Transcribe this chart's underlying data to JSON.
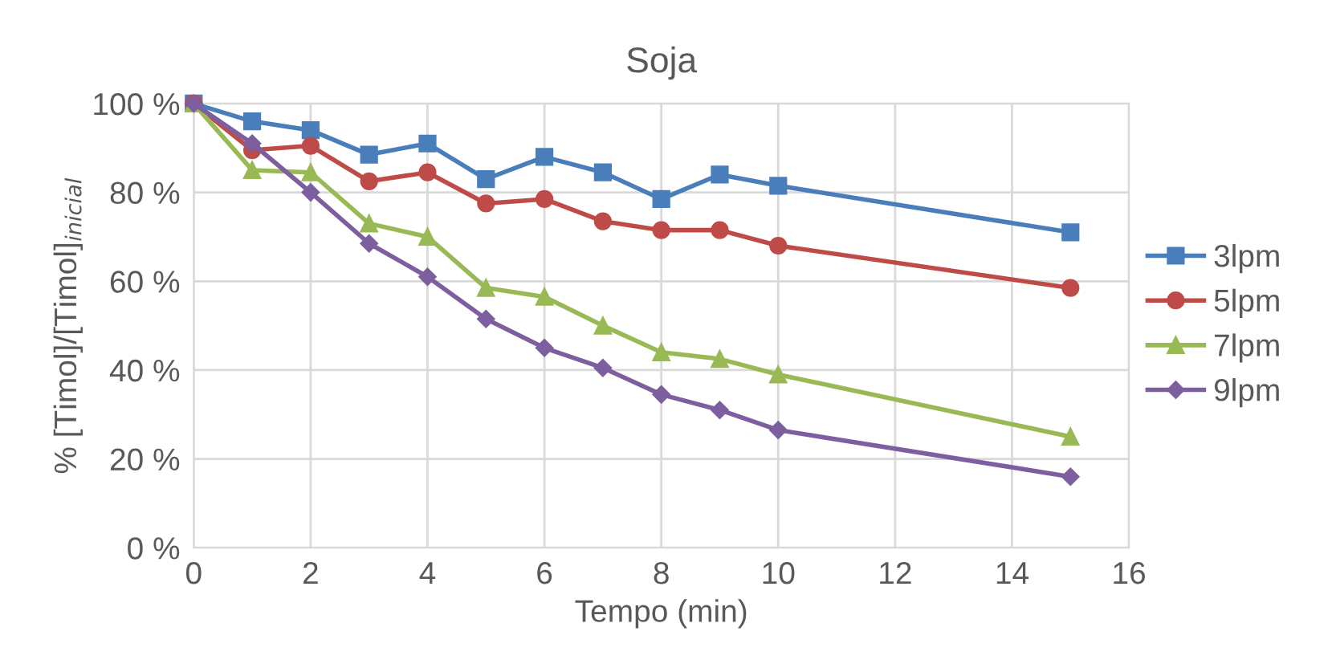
{
  "chart_data": {
    "type": "line",
    "title": "Soja",
    "xlabel": "Tempo (min)",
    "ylabel": "% [Timol]/[Timol]$_{inicial}$",
    "x": [
      0,
      1,
      2,
      3,
      4,
      5,
      6,
      7,
      8,
      9,
      10,
      15
    ],
    "series": [
      {
        "name": "3lpm",
        "color": "#4a7ebb",
        "marker": "square",
        "values": [
          100,
          96,
          94,
          88.5,
          91,
          83,
          88,
          84.5,
          78.5,
          84,
          81.5,
          71
        ]
      },
      {
        "name": "5lpm",
        "color": "#be4b48",
        "marker": "circle",
        "values": [
          100,
          89.5,
          90.5,
          82.5,
          84.5,
          77.5,
          78.5,
          73.5,
          71.5,
          71.5,
          68,
          58.5
        ]
      },
      {
        "name": "7lpm",
        "color": "#98b954",
        "marker": "triangle",
        "values": [
          100,
          85,
          84.5,
          73,
          70,
          58.5,
          56.5,
          50,
          44,
          42.5,
          39,
          25
        ]
      },
      {
        "name": "9lpm",
        "color": "#7d5fa0",
        "marker": "diamond",
        "values": [
          100,
          91,
          80,
          68.5,
          61,
          51.5,
          45,
          40.5,
          34.5,
          31,
          26.5,
          16
        ]
      }
    ],
    "xlim": [
      0,
      16
    ],
    "xticks": [
      0,
      2,
      4,
      6,
      8,
      10,
      12,
      14,
      16
    ],
    "ylim": [
      0,
      100
    ],
    "yticks": [
      {
        "value": 0,
        "label": "0 %"
      },
      {
        "value": 20,
        "label": "20 %"
      },
      {
        "value": 40,
        "label": "40 %"
      },
      {
        "value": 60,
        "label": "60 %"
      },
      {
        "value": 80,
        "label": "80 %"
      },
      {
        "value": 100,
        "label": "100 %"
      }
    ],
    "grid": true,
    "legend": "right",
    "line_style": "solid"
  }
}
